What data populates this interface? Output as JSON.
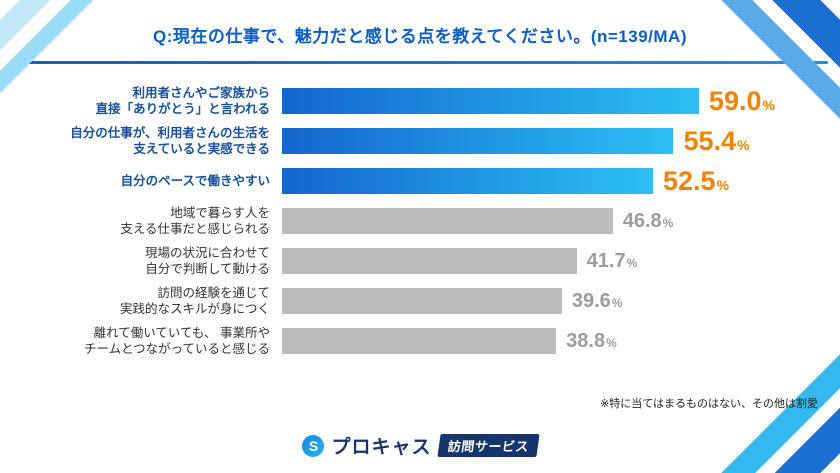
{
  "header": {
    "title": "Q:現在の仕事で、魅力だと感じる点を教えてください。(n=139/MA)"
  },
  "chart_data": {
    "type": "bar",
    "orientation": "horizontal",
    "title": "現在の仕事で、魅力だと感じる点(n=139/MA)",
    "unit": "%",
    "xlim": [
      0,
      60
    ],
    "legend": "none",
    "grid": "off",
    "categories": [
      "利用者さんやご家族から\n直接「ありがとう」と言われる",
      "自分の仕事が、利用者さんの生活を\n支えていると実感できる",
      "自分のペースで働きやすい",
      "地域で暮らす人を\n支える仕事だと感じられる",
      "現場の状況に合わせて\n自分で判断して動ける",
      "訪問の経験を通じて\n実践的なスキルが身につく",
      "離れて働いていても、 事業所や\nチームとつながっていると感じる"
    ],
    "values": [
      "59.0",
      "55.4",
      "52.5",
      "46.8",
      "41.7",
      "39.6",
      "38.8"
    ],
    "highlighted": [
      true,
      true,
      true,
      false,
      false,
      false,
      false
    ],
    "colors": {
      "bar_gradient_start": "#1565cf",
      "bar_gradient_end": "#2ebff3",
      "bar_gray": "#bcbcbc",
      "value_highlight": "#f08300",
      "value_gray": "#9c9c9c",
      "label_highlight": "#17509f",
      "label_gray": "#333333",
      "title_blue": "#0a5fc6"
    }
  },
  "footnote": "※特に当てはまるものはない、その他は割愛",
  "footer": {
    "brand_name": "プロキャス",
    "badge_label": "訪問サービス",
    "logo_letter": "S"
  }
}
